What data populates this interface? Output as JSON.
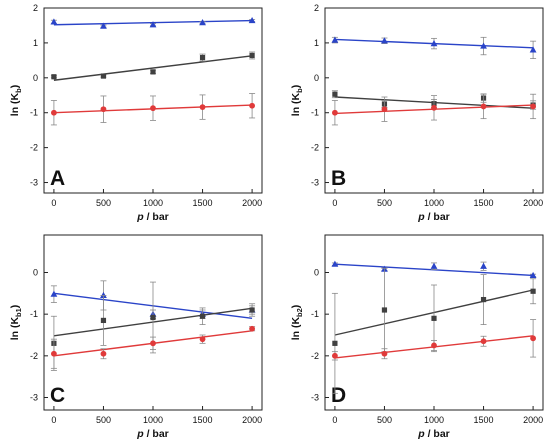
{
  "chart_data": [
    {
      "panel": "A",
      "type": "scatter",
      "xlabel": "p / bar",
      "ylabel_main": "ln (K",
      "ylabel_sub": "b",
      "ylabel_end": ")",
      "xlim": [
        -100,
        2100
      ],
      "ylim": [
        -3.3,
        2.0
      ],
      "xticks": [
        0,
        500,
        1000,
        1500,
        2000
      ],
      "yticks": [
        -3,
        -2,
        -1,
        0,
        1,
        2
      ],
      "series": [
        {
          "marker": "triangle",
          "color": "#2a44c8",
          "x": [
            0,
            500,
            1000,
            1500,
            2000
          ],
          "y": [
            1.6,
            1.48,
            1.52,
            1.58,
            1.64
          ],
          "err": [
            0.05,
            0.03,
            0.03,
            0.03,
            0.03
          ],
          "fit": [
            1.52,
            1.64
          ]
        },
        {
          "marker": "square",
          "color": "#404040",
          "x": [
            0,
            500,
            1000,
            1500,
            2000
          ],
          "y": [
            0.03,
            0.05,
            0.17,
            0.58,
            0.64
          ],
          "err": [
            0.03,
            0.03,
            0.05,
            0.1,
            0.1
          ],
          "fit": [
            -0.07,
            0.63
          ]
        },
        {
          "marker": "circle",
          "color": "#e03a3a",
          "x": [
            0,
            500,
            1000,
            1500,
            2000
          ],
          "y": [
            -1.0,
            -0.9,
            -0.87,
            -0.84,
            -0.8
          ],
          "err": [
            0.35,
            0.38,
            0.35,
            0.35,
            0.35
          ],
          "fit": [
            -1.0,
            -0.78
          ]
        }
      ]
    },
    {
      "panel": "B",
      "type": "scatter",
      "xlabel": "p / bar",
      "ylabel_main": "ln (K",
      "ylabel_sub": "b",
      "ylabel_end": ")",
      "xlim": [
        -100,
        2100
      ],
      "ylim": [
        -3.3,
        2.0
      ],
      "xticks": [
        0,
        500,
        1000,
        1500,
        2000
      ],
      "yticks": [
        -3,
        -2,
        -1,
        0,
        1,
        2
      ],
      "series": [
        {
          "marker": "triangle",
          "color": "#2a44c8",
          "x": [
            0,
            500,
            1000,
            1500,
            2000
          ],
          "y": [
            1.08,
            1.06,
            0.98,
            0.91,
            0.8
          ],
          "err": [
            0.08,
            0.08,
            0.15,
            0.25,
            0.25
          ],
          "fit": [
            1.1,
            0.86
          ]
        },
        {
          "marker": "square",
          "color": "#404040",
          "x": [
            0,
            500,
            1000,
            1500,
            2000
          ],
          "y": [
            -0.47,
            -0.75,
            -0.74,
            -0.58,
            -0.78
          ],
          "err": [
            0.1,
            0.1,
            0.12,
            0.12,
            0.12
          ],
          "fit": [
            -0.55,
            -0.87
          ]
        },
        {
          "marker": "circle",
          "color": "#e03a3a",
          "x": [
            0,
            500,
            1000,
            1500,
            2000
          ],
          "y": [
            -1.0,
            -0.9,
            -0.86,
            -0.82,
            -0.82
          ],
          "err": [
            0.35,
            0.35,
            0.35,
            0.35,
            0.35
          ],
          "fit": [
            -1.02,
            -0.78
          ]
        }
      ]
    },
    {
      "panel": "C",
      "type": "scatter",
      "xlabel": "p / bar",
      "ylabel_main": "ln (K",
      "ylabel_sub": "b1",
      "ylabel_end": ")",
      "xlim": [
        -100,
        2100
      ],
      "ylim": [
        -3.3,
        0.9
      ],
      "xticks": [
        0,
        500,
        1000,
        1500,
        2000
      ],
      "yticks": [
        -3,
        -2,
        -1,
        0
      ],
      "series": [
        {
          "marker": "triangle",
          "color": "#2a44c8",
          "x": [
            0,
            500,
            1000,
            1500,
            2000
          ],
          "y": [
            -0.52,
            -0.55,
            -1.0,
            -1.0,
            -0.9
          ],
          "err": [
            0.2,
            0.35,
            0.1,
            0.1,
            0.1
          ],
          "fit": [
            -0.5,
            -1.1
          ]
        },
        {
          "marker": "square",
          "color": "#404040",
          "x": [
            0,
            500,
            1000,
            1500,
            2000
          ],
          "y": [
            -1.7,
            -1.15,
            -1.08,
            -1.05,
            -0.9
          ],
          "err": [
            0.65,
            0.6,
            0.85,
            0.2,
            0.15
          ],
          "fit": [
            -1.52,
            -0.86
          ]
        },
        {
          "marker": "circle",
          "color": "#e03a3a",
          "x": [
            0,
            500,
            1000,
            1500,
            2000
          ],
          "y": [
            -1.95,
            -1.95,
            -1.7,
            -1.6,
            -1.35
          ],
          "err": [
            0.35,
            0.12,
            0.15,
            0.1,
            0.05
          ],
          "fit": [
            -2.0,
            -1.4
          ]
        }
      ]
    },
    {
      "panel": "D",
      "type": "scatter",
      "xlabel": "p / bar",
      "ylabel_main": "ln (K",
      "ylabel_sub": "b2",
      "ylabel_end": ")",
      "xlim": [
        -100,
        2100
      ],
      "ylim": [
        -3.3,
        0.9
      ],
      "xticks": [
        0,
        500,
        1000,
        1500,
        2000
      ],
      "yticks": [
        -3,
        -2,
        -1,
        0
      ],
      "series": [
        {
          "marker": "triangle",
          "color": "#2a44c8",
          "x": [
            0,
            500,
            1000,
            1500,
            2000
          ],
          "y": [
            0.2,
            0.08,
            0.15,
            0.15,
            -0.07
          ],
          "err": [
            0.03,
            0.03,
            0.08,
            0.1,
            0.03
          ],
          "fit": [
            0.2,
            -0.07
          ]
        },
        {
          "marker": "square",
          "color": "#404040",
          "x": [
            0,
            500,
            1000,
            1500,
            2000
          ],
          "y": [
            -1.7,
            -0.9,
            -1.1,
            -0.65,
            -0.45
          ],
          "err": [
            1.2,
            1.0,
            0.8,
            0.6,
            0.3
          ],
          "fit": [
            -1.5,
            -0.42
          ]
        },
        {
          "marker": "circle",
          "color": "#e03a3a",
          "x": [
            0,
            500,
            1000,
            1500,
            2000
          ],
          "y": [
            -2.0,
            -1.95,
            -1.75,
            -1.65,
            -1.58
          ],
          "err": [
            0.1,
            0.12,
            0.12,
            0.12,
            0.45
          ],
          "fit": [
            -2.05,
            -1.52
          ]
        }
      ]
    }
  ]
}
